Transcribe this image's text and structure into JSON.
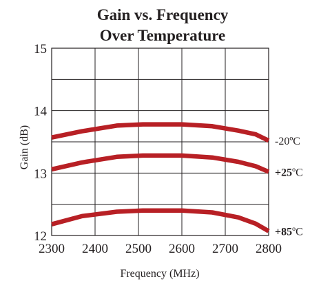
{
  "chart_data": {
    "type": "line",
    "title_lines": [
      "Gain vs. Frequency",
      "Over Temperature"
    ],
    "xlabel": "Frequency (MHz)",
    "ylabel": "Gain (dB)",
    "xlim": [
      2300,
      2800
    ],
    "ylim": [
      12,
      15
    ],
    "x_ticks": [
      2300,
      2400,
      2500,
      2600,
      2700,
      2800
    ],
    "y_ticks": [
      12,
      13,
      14,
      15
    ],
    "grid": true,
    "line_color": "#b82025",
    "x": [
      2300,
      2370,
      2450,
      2510,
      2600,
      2670,
      2730,
      2770,
      2800
    ],
    "series": [
      {
        "label_prefix": "-20",
        "label_suffix": "ºC",
        "values": [
          13.57,
          13.67,
          13.76,
          13.78,
          13.78,
          13.75,
          13.68,
          13.62,
          13.52
        ]
      },
      {
        "label_prefix": "+25",
        "label_suffix": "ºC",
        "values": [
          13.06,
          13.17,
          13.26,
          13.28,
          13.28,
          13.25,
          13.18,
          13.11,
          13.02
        ]
      },
      {
        "label_prefix": "+85",
        "label_suffix": "ºC",
        "values": [
          12.18,
          12.31,
          12.38,
          12.4,
          12.4,
          12.37,
          12.29,
          12.19,
          12.07
        ]
      }
    ]
  }
}
